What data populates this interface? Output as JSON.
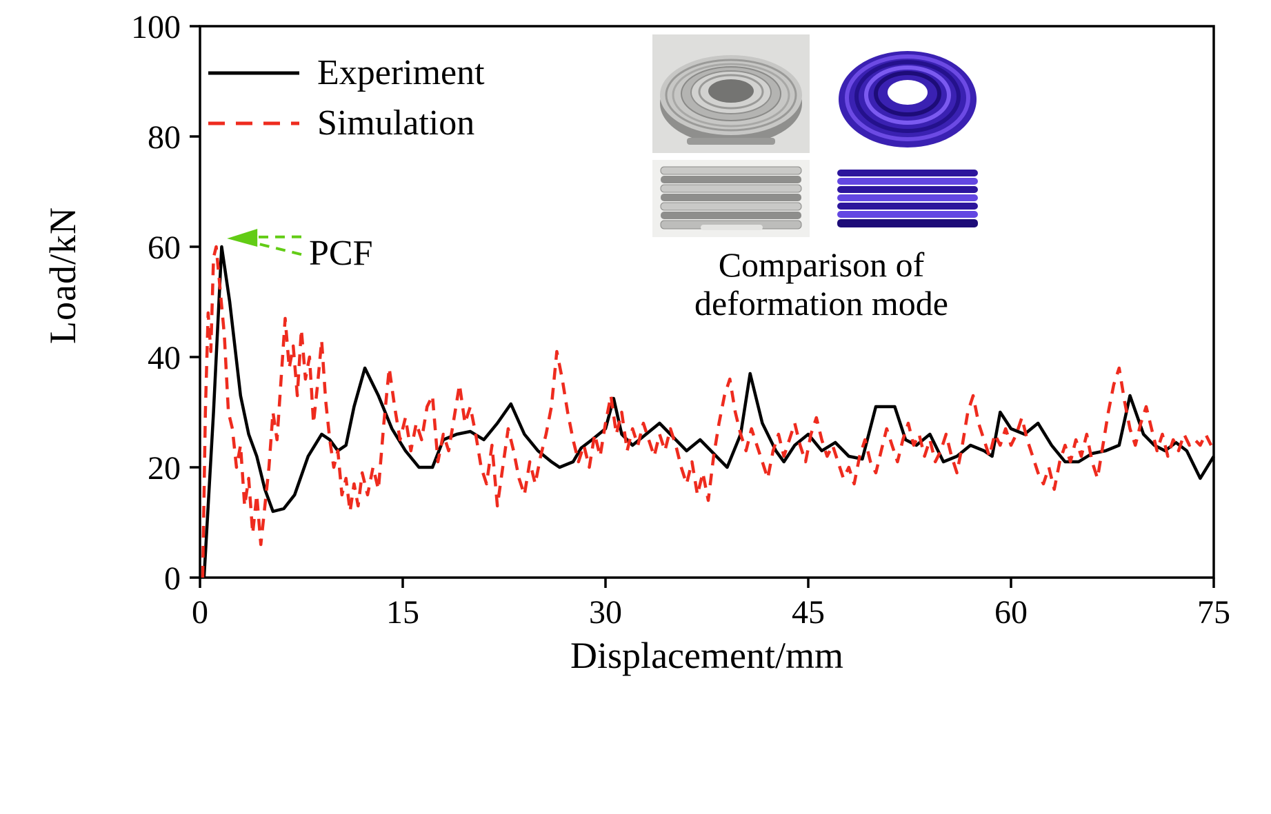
{
  "colors": {
    "experiment": "#000000",
    "simulation": "#ee2b1e",
    "annotation_green": "#62cc15",
    "axis": "#000000"
  },
  "legend": [
    {
      "label": "Experiment",
      "style": "solid",
      "color": "#000000"
    },
    {
      "label": "Simulation",
      "style": "dashed",
      "color": "#ee2b1e"
    }
  ],
  "inset": {
    "images": [
      "experiment-top-view",
      "simulation-top-view",
      "experiment-side-view",
      "simulation-side-view"
    ],
    "caption_line1": "Comparison of",
    "caption_line2": "deformation mode"
  },
  "chart_data": {
    "type": "line",
    "title": "",
    "xlabel": "Displacement/mm",
    "ylabel": "Load/kN",
    "xlim": [
      0,
      75
    ],
    "ylim": [
      0,
      100
    ],
    "xticks": [
      0,
      15,
      30,
      45,
      60,
      75
    ],
    "yticks": [
      0,
      20,
      40,
      60,
      80,
      100
    ],
    "grid": false,
    "legend_position": "top-left",
    "annotation": {
      "label": "PCF",
      "arrow_tip": [
        2.0,
        61.5
      ],
      "tail_x": 7.5,
      "color": "#62cc15"
    },
    "series": [
      {
        "name": "Experiment",
        "color": "#000000",
        "style": "solid",
        "points": [
          [
            0.3,
            0
          ],
          [
            1.0,
            30
          ],
          [
            1.6,
            60
          ],
          [
            2.2,
            50
          ],
          [
            3.0,
            33
          ],
          [
            3.6,
            26
          ],
          [
            4.2,
            22
          ],
          [
            4.8,
            16
          ],
          [
            5.4,
            12
          ],
          [
            6.2,
            12.5
          ],
          [
            7.0,
            15
          ],
          [
            8.0,
            22
          ],
          [
            9.0,
            26
          ],
          [
            9.6,
            25
          ],
          [
            10.2,
            23
          ],
          [
            10.8,
            24
          ],
          [
            11.4,
            31
          ],
          [
            12.2,
            38
          ],
          [
            13.2,
            33
          ],
          [
            14.2,
            27
          ],
          [
            15.2,
            23
          ],
          [
            16.2,
            20
          ],
          [
            17.2,
            20
          ],
          [
            18.0,
            25
          ],
          [
            19.0,
            26
          ],
          [
            20.0,
            26.5
          ],
          [
            21.0,
            25
          ],
          [
            22.0,
            28
          ],
          [
            23.0,
            31.5
          ],
          [
            24.0,
            26
          ],
          [
            25.0,
            23
          ],
          [
            26.0,
            21
          ],
          [
            26.6,
            20
          ],
          [
            27.6,
            21
          ],
          [
            28.2,
            23.5
          ],
          [
            29.0,
            25
          ],
          [
            30.0,
            27
          ],
          [
            30.6,
            32.5
          ],
          [
            31.2,
            26
          ],
          [
            32.0,
            24
          ],
          [
            33.0,
            26
          ],
          [
            34.0,
            28
          ],
          [
            35.0,
            25.5
          ],
          [
            36.0,
            23
          ],
          [
            37.0,
            25
          ],
          [
            38.0,
            22.5
          ],
          [
            39.0,
            20
          ],
          [
            40.0,
            26
          ],
          [
            40.7,
            37
          ],
          [
            41.6,
            28
          ],
          [
            42.6,
            23
          ],
          [
            43.2,
            21
          ],
          [
            44.0,
            24
          ],
          [
            45.0,
            26
          ],
          [
            46.0,
            23
          ],
          [
            47.0,
            24.5
          ],
          [
            48.0,
            22
          ],
          [
            49.0,
            21.5
          ],
          [
            50.0,
            31
          ],
          [
            51.4,
            31
          ],
          [
            52.2,
            25
          ],
          [
            53.0,
            24
          ],
          [
            54.0,
            26
          ],
          [
            55.0,
            21
          ],
          [
            56.0,
            22
          ],
          [
            57.0,
            24
          ],
          [
            58.0,
            23
          ],
          [
            58.6,
            22
          ],
          [
            59.2,
            30
          ],
          [
            60.0,
            27
          ],
          [
            61.0,
            26
          ],
          [
            62.0,
            28
          ],
          [
            63.0,
            24
          ],
          [
            64.0,
            21
          ],
          [
            65.0,
            21
          ],
          [
            66.0,
            22.5
          ],
          [
            67.0,
            23
          ],
          [
            68.0,
            24
          ],
          [
            68.8,
            33
          ],
          [
            69.8,
            26
          ],
          [
            70.6,
            24
          ],
          [
            71.4,
            23
          ],
          [
            72.2,
            24.5
          ],
          [
            73.0,
            23
          ],
          [
            74.0,
            18
          ],
          [
            75.0,
            22
          ]
        ]
      },
      {
        "name": "Simulation",
        "color": "#ee2b1e",
        "style": "dashed",
        "points": [
          [
            0.2,
            0
          ],
          [
            0.4,
            30
          ],
          [
            0.6,
            48
          ],
          [
            0.8,
            41
          ],
          [
            1.0,
            58
          ],
          [
            1.2,
            60
          ],
          [
            1.5,
            52
          ],
          [
            1.8,
            44
          ],
          [
            2.1,
            30
          ],
          [
            2.4,
            27
          ],
          [
            2.7,
            20
          ],
          [
            3.0,
            24
          ],
          [
            3.3,
            13
          ],
          [
            3.6,
            18
          ],
          [
            3.9,
            8
          ],
          [
            4.2,
            15
          ],
          [
            4.5,
            6
          ],
          [
            4.8,
            13
          ],
          [
            5.1,
            20
          ],
          [
            5.4,
            30
          ],
          [
            5.7,
            25
          ],
          [
            6.0,
            36
          ],
          [
            6.3,
            47
          ],
          [
            6.6,
            38
          ],
          [
            6.9,
            42
          ],
          [
            7.2,
            33
          ],
          [
            7.5,
            45
          ],
          [
            7.8,
            36
          ],
          [
            8.1,
            40
          ],
          [
            8.4,
            28
          ],
          [
            8.7,
            35
          ],
          [
            9.0,
            43
          ],
          [
            9.3,
            32
          ],
          [
            9.6,
            25
          ],
          [
            9.9,
            20
          ],
          [
            10.2,
            23
          ],
          [
            10.5,
            15
          ],
          [
            10.8,
            18
          ],
          [
            11.1,
            12
          ],
          [
            11.4,
            17
          ],
          [
            11.7,
            13
          ],
          [
            12.0,
            19
          ],
          [
            12.4,
            15
          ],
          [
            12.8,
            20
          ],
          [
            13.2,
            16
          ],
          [
            13.6,
            28
          ],
          [
            14.0,
            38
          ],
          [
            14.4,
            31
          ],
          [
            14.8,
            25
          ],
          [
            15.2,
            29
          ],
          [
            15.6,
            23
          ],
          [
            16.0,
            28
          ],
          [
            16.4,
            25
          ],
          [
            16.8,
            31
          ],
          [
            17.2,
            33
          ],
          [
            17.6,
            21
          ],
          [
            18.0,
            26
          ],
          [
            18.4,
            23
          ],
          [
            18.8,
            29
          ],
          [
            19.2,
            35
          ],
          [
            19.6,
            28
          ],
          [
            20.0,
            31
          ],
          [
            20.4,
            26
          ],
          [
            20.8,
            20
          ],
          [
            21.2,
            17
          ],
          [
            21.6,
            24
          ],
          [
            22.0,
            13
          ],
          [
            22.4,
            20
          ],
          [
            22.8,
            27
          ],
          [
            23.2,
            23
          ],
          [
            23.6,
            18
          ],
          [
            24.0,
            15
          ],
          [
            24.4,
            21
          ],
          [
            24.8,
            17
          ],
          [
            25.2,
            22
          ],
          [
            25.6,
            26
          ],
          [
            26.0,
            31
          ],
          [
            26.4,
            41
          ],
          [
            26.8,
            36
          ],
          [
            27.2,
            30
          ],
          [
            27.6,
            25
          ],
          [
            28.0,
            21
          ],
          [
            28.4,
            24
          ],
          [
            28.8,
            20
          ],
          [
            29.2,
            26
          ],
          [
            29.6,
            22
          ],
          [
            30.0,
            28
          ],
          [
            30.4,
            33
          ],
          [
            30.8,
            26
          ],
          [
            31.2,
            30
          ],
          [
            31.6,
            23
          ],
          [
            32.0,
            27
          ],
          [
            32.4,
            24
          ],
          [
            32.8,
            28
          ],
          [
            33.2,
            25
          ],
          [
            33.6,
            22
          ],
          [
            34.0,
            26
          ],
          [
            34.4,
            23
          ],
          [
            34.8,
            27
          ],
          [
            35.2,
            24
          ],
          [
            35.6,
            20
          ],
          [
            36.0,
            17
          ],
          [
            36.4,
            21
          ],
          [
            36.8,
            15
          ],
          [
            37.2,
            19
          ],
          [
            37.6,
            14
          ],
          [
            38.0,
            22
          ],
          [
            38.4,
            28
          ],
          [
            38.8,
            33
          ],
          [
            39.2,
            36
          ],
          [
            39.6,
            30
          ],
          [
            40.0,
            26
          ],
          [
            40.4,
            23
          ],
          [
            40.8,
            27
          ],
          [
            41.2,
            24
          ],
          [
            41.6,
            21
          ],
          [
            42.0,
            18
          ],
          [
            42.4,
            23
          ],
          [
            42.8,
            26
          ],
          [
            43.2,
            22
          ],
          [
            43.6,
            25
          ],
          [
            44.0,
            28
          ],
          [
            44.4,
            24
          ],
          [
            44.8,
            21
          ],
          [
            45.2,
            26
          ],
          [
            45.6,
            29
          ],
          [
            46.0,
            25
          ],
          [
            46.4,
            22
          ],
          [
            46.8,
            24
          ],
          [
            47.2,
            21
          ],
          [
            47.6,
            18
          ],
          [
            48.0,
            20
          ],
          [
            48.4,
            17
          ],
          [
            48.8,
            22
          ],
          [
            49.2,
            25
          ],
          [
            49.6,
            21
          ],
          [
            50.0,
            19
          ],
          [
            50.4,
            23
          ],
          [
            50.8,
            27
          ],
          [
            51.2,
            24
          ],
          [
            51.6,
            21
          ],
          [
            52.0,
            25
          ],
          [
            52.4,
            28
          ],
          [
            52.8,
            24
          ],
          [
            53.2,
            26
          ],
          [
            53.6,
            22
          ],
          [
            54.0,
            25
          ],
          [
            54.4,
            21
          ],
          [
            54.8,
            23
          ],
          [
            55.2,
            26
          ],
          [
            55.6,
            22
          ],
          [
            56.0,
            19
          ],
          [
            56.4,
            24
          ],
          [
            56.8,
            30
          ],
          [
            57.2,
            33
          ],
          [
            57.6,
            28
          ],
          [
            58.0,
            25
          ],
          [
            58.4,
            22
          ],
          [
            58.8,
            26
          ],
          [
            59.2,
            24
          ],
          [
            59.6,
            27
          ],
          [
            60.0,
            24
          ],
          [
            60.4,
            26
          ],
          [
            60.8,
            29
          ],
          [
            61.2,
            25
          ],
          [
            61.6,
            22
          ],
          [
            62.0,
            19
          ],
          [
            62.4,
            17
          ],
          [
            62.8,
            20
          ],
          [
            63.2,
            16
          ],
          [
            63.6,
            21
          ],
          [
            64.0,
            24
          ],
          [
            64.4,
            21
          ],
          [
            64.8,
            25
          ],
          [
            65.2,
            22
          ],
          [
            65.6,
            26
          ],
          [
            66.0,
            21
          ],
          [
            66.4,
            18
          ],
          [
            66.8,
            24
          ],
          [
            67.2,
            30
          ],
          [
            67.6,
            35
          ],
          [
            68.0,
            38
          ],
          [
            68.4,
            32
          ],
          [
            68.8,
            27
          ],
          [
            69.2,
            24
          ],
          [
            69.6,
            28
          ],
          [
            70.0,
            31
          ],
          [
            70.4,
            27
          ],
          [
            70.8,
            23
          ],
          [
            71.2,
            26
          ],
          [
            71.6,
            22
          ],
          [
            72.0,
            25
          ],
          [
            72.4,
            23
          ],
          [
            72.8,
            26
          ],
          [
            73.2,
            24
          ],
          [
            73.6,
            25
          ],
          [
            74.0,
            24
          ],
          [
            74.4,
            26
          ],
          [
            74.8,
            24
          ]
        ]
      }
    ]
  }
}
